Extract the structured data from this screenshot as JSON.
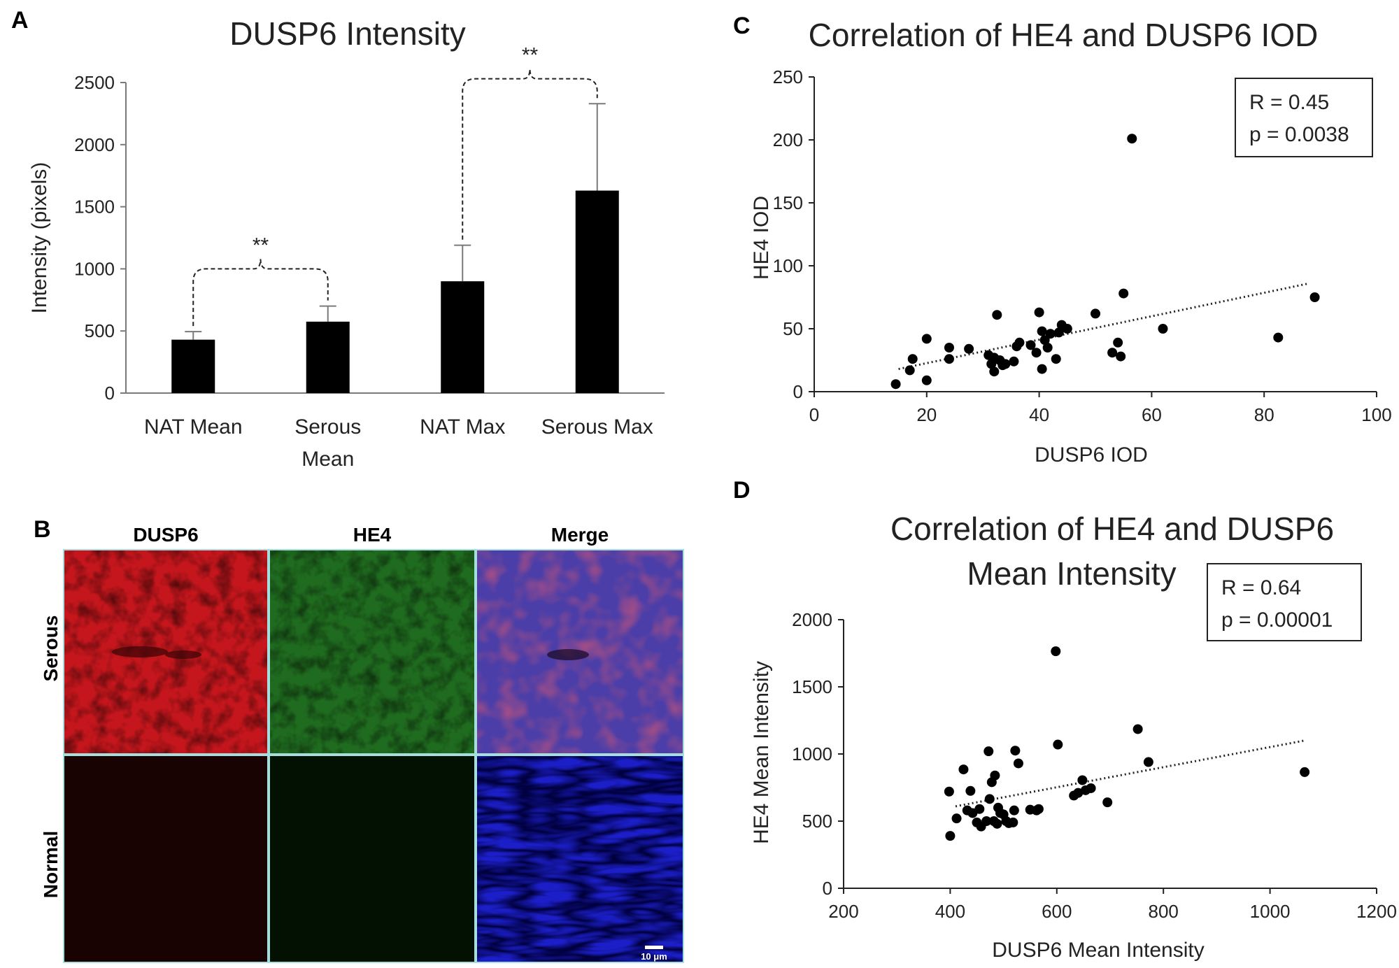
{
  "figure": {
    "panel_letters": {
      "a": "A",
      "b": "B",
      "c": "C",
      "d": "D"
    }
  },
  "chart_data": [
    {
      "id": "A",
      "type": "bar",
      "title": "DUSP6 Intensity",
      "ylabel": "Intensity (pixels)",
      "xlabel": "",
      "ylim": [
        0,
        2500
      ],
      "yticks": [
        0,
        500,
        1000,
        1500,
        2000,
        2500
      ],
      "categories": [
        [
          "NAT Mean"
        ],
        [
          "Serous",
          "Mean"
        ],
        [
          "NAT Max"
        ],
        [
          "Serous Max"
        ]
      ],
      "values": [
        430,
        575,
        900,
        1630
      ],
      "errors": [
        65,
        125,
        290,
        700
      ],
      "bar_color": "#000000",
      "grid": false,
      "significance": [
        {
          "from": 0,
          "to": 1,
          "label": "**",
          "y": 1000
        },
        {
          "from": 2,
          "to": 3,
          "label": "**",
          "y": 2530
        }
      ]
    },
    {
      "id": "C",
      "type": "scatter",
      "title": "Correlation of HE4 and DUSP6 IOD",
      "xlabel": "DUSP6 IOD",
      "ylabel": "HE4 IOD",
      "xlim": [
        0,
        100
      ],
      "ylim": [
        0,
        250
      ],
      "xticks": [
        0,
        20,
        40,
        60,
        80,
        100
      ],
      "yticks": [
        0,
        50,
        100,
        150,
        200,
        250
      ],
      "grid": false,
      "trendline": {
        "x": [
          15,
          88
        ],
        "y": [
          18,
          86
        ]
      },
      "stats": [
        "R = 0.45",
        "p = 0.0038"
      ],
      "stats_position": "top-right",
      "points": [
        [
          14.5,
          6
        ],
        [
          17,
          17
        ],
        [
          17.5,
          26
        ],
        [
          20,
          9
        ],
        [
          20,
          42
        ],
        [
          24,
          26
        ],
        [
          24,
          35
        ],
        [
          27.5,
          34
        ],
        [
          31,
          29
        ],
        [
          31.5,
          22
        ],
        [
          32,
          16
        ],
        [
          32,
          27
        ],
        [
          32.5,
          61
        ],
        [
          33,
          25
        ],
        [
          33.5,
          21
        ],
        [
          34,
          22
        ],
        [
          35.5,
          24
        ],
        [
          36,
          36
        ],
        [
          36.5,
          39
        ],
        [
          38.5,
          37
        ],
        [
          39.5,
          31
        ],
        [
          40,
          63
        ],
        [
          40.5,
          48
        ],
        [
          40.5,
          18
        ],
        [
          41,
          41
        ],
        [
          41.5,
          35
        ],
        [
          42,
          46
        ],
        [
          43,
          26
        ],
        [
          43.5,
          47
        ],
        [
          44,
          53
        ],
        [
          45,
          50
        ],
        [
          50,
          62
        ],
        [
          53,
          31
        ],
        [
          54,
          39
        ],
        [
          54.5,
          28
        ],
        [
          55,
          78
        ],
        [
          56.5,
          201
        ],
        [
          62,
          50
        ],
        [
          82.5,
          43
        ],
        [
          89,
          75
        ]
      ]
    },
    {
      "id": "D",
      "type": "scatter",
      "title": "Correlation of HE4 and DUSP6",
      "subtitle": "Mean Intensity",
      "xlabel": "DUSP6 Mean Intensity",
      "ylabel": "HE4 Mean Intensity",
      "xlim": [
        200,
        1200
      ],
      "ylim": [
        0,
        2000
      ],
      "xticks": [
        200,
        400,
        600,
        800,
        1000,
        1200
      ],
      "yticks": [
        0,
        500,
        1000,
        1500,
        2000
      ],
      "grid": false,
      "trendline": {
        "x": [
          410,
          1065
        ],
        "y": [
          610,
          1100
        ]
      },
      "stats": [
        "R = 0.64",
        "p = 0.00001"
      ],
      "stats_position": "top-right",
      "points": [
        [
          398,
          720
        ],
        [
          400,
          390
        ],
        [
          412,
          520
        ],
        [
          425,
          885
        ],
        [
          432,
          580
        ],
        [
          438,
          725
        ],
        [
          442,
          560
        ],
        [
          450,
          490
        ],
        [
          455,
          590
        ],
        [
          458,
          460
        ],
        [
          468,
          500
        ],
        [
          472,
          1020
        ],
        [
          474,
          665
        ],
        [
          478,
          790
        ],
        [
          482,
          500
        ],
        [
          484,
          840
        ],
        [
          488,
          480
        ],
        [
          490,
          600
        ],
        [
          494,
          560
        ],
        [
          500,
          550
        ],
        [
          505,
          500
        ],
        [
          510,
          485
        ],
        [
          518,
          490
        ],
        [
          520,
          580
        ],
        [
          522,
          1025
        ],
        [
          528,
          930
        ],
        [
          550,
          585
        ],
        [
          562,
          580
        ],
        [
          566,
          590
        ],
        [
          598,
          1765
        ],
        [
          602,
          1070
        ],
        [
          632,
          690
        ],
        [
          640,
          710
        ],
        [
          648,
          805
        ],
        [
          654,
          730
        ],
        [
          664,
          745
        ],
        [
          695,
          640
        ],
        [
          752,
          1185
        ],
        [
          772,
          940
        ],
        [
          1065,
          865
        ]
      ]
    }
  ],
  "micrograph": {
    "columns": [
      "DUSP6",
      "HE4",
      "Merge"
    ],
    "rows": [
      "Serous",
      "Normal"
    ],
    "scale_bar_label": "10 μm",
    "colors": {
      "dusp6_serous": "#c4161c",
      "he4_serous": "#1f6b1f",
      "merge_serous": "#5a3f8f",
      "dusp6_normal": "#180202",
      "he4_normal": "#031103",
      "merge_normal": "#1c1fc8",
      "border": "#a6dede"
    }
  }
}
